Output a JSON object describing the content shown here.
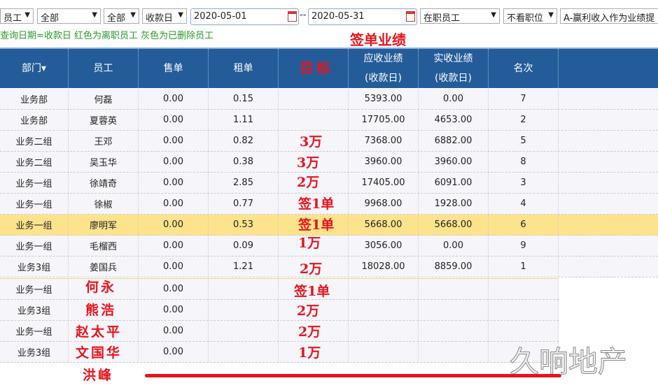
{
  "filters": {
    "type": "员工",
    "dept": "全部",
    "group": "全部",
    "date_type": "收款日",
    "date_from": "2020-05-01",
    "date_sep": "--",
    "date_to": "2020-05-31",
    "status": "在职员工",
    "position": "不看职位",
    "mode": "A-赢利收入作为业绩提"
  },
  "hint": "查询日期=收款日 红色为离职员工 灰色为已删除员工",
  "header": {
    "dept": "部门▾",
    "staff": "员工",
    "sale": "售单",
    "rent": "租单",
    "target": "",
    "receivable": "应收业绩",
    "receivable_sub": "(收款日)",
    "received": "实收业绩",
    "received_sub": "(收款日)",
    "rank": "名次"
  },
  "rows": [
    {
      "dept": "业务部",
      "name": "何磊",
      "sale": "0.00",
      "rent": "0.15",
      "recv": "5393.00",
      "got": "0.00",
      "rank": "7"
    },
    {
      "dept": "业务部",
      "name": "夏蓉英",
      "sale": "0.00",
      "rent": "1.11",
      "recv": "17705.00",
      "got": "4653.00",
      "rank": "2"
    },
    {
      "dept": "业务二组",
      "name": "王邓",
      "sale": "0.00",
      "rent": "0.82",
      "recv": "7368.00",
      "got": "6882.00",
      "rank": "5"
    },
    {
      "dept": "业务二组",
      "name": "吴玉华",
      "sale": "0.00",
      "rent": "0.38",
      "recv": "3960.00",
      "got": "3960.00",
      "rank": "8"
    },
    {
      "dept": "业务一组",
      "name": "徐靖奇",
      "sale": "0.00",
      "rent": "2.85",
      "recv": "17405.00",
      "got": "6091.00",
      "rank": "3"
    },
    {
      "dept": "业务一组",
      "name": "徐椒",
      "sale": "0.00",
      "rent": "0.77",
      "recv": "9968.00",
      "got": "1928.00",
      "rank": "4"
    },
    {
      "dept": "业务一组",
      "name": "廖明军",
      "sale": "0.00",
      "rent": "0.53",
      "recv": "5668.00",
      "got": "5668.00",
      "rank": "6",
      "highlight": true
    },
    {
      "dept": "业务一组",
      "name": "毛榴西",
      "sale": "0.00",
      "rent": "0.09",
      "recv": "3056.00",
      "got": "0.00",
      "rank": "9"
    },
    {
      "dept": "业务3组",
      "name": "姜国兵",
      "sale": "0.00",
      "rent": "1.21",
      "recv": "18028.00",
      "got": "8859.00",
      "rank": "1"
    }
  ],
  "rows2": [
    {
      "dept": "业务一组",
      "sale": "0.00"
    },
    {
      "dept": "业务3组",
      "sale": "0.00"
    },
    {
      "dept": "业务一组",
      "sale": "0.00"
    },
    {
      "dept": "业务3组",
      "sale": "0.00"
    }
  ],
  "annotations": {
    "sign_perf": "签单业绩",
    "target": "目标",
    "targets": [
      "3万",
      "3万",
      "2万",
      "签1单",
      "签1单",
      "1万",
      "2万",
      "签1单",
      "2万",
      "2万",
      "1万"
    ],
    "names": [
      "何永",
      "熊浩",
      "赵太平",
      "文国华",
      "洪峰"
    ]
  },
  "watermark": "久响地产",
  "colors": {
    "header": "#245c99",
    "highlight": "#fde38c",
    "annotation": "#e8141c",
    "hint": "#2a9a2a"
  }
}
